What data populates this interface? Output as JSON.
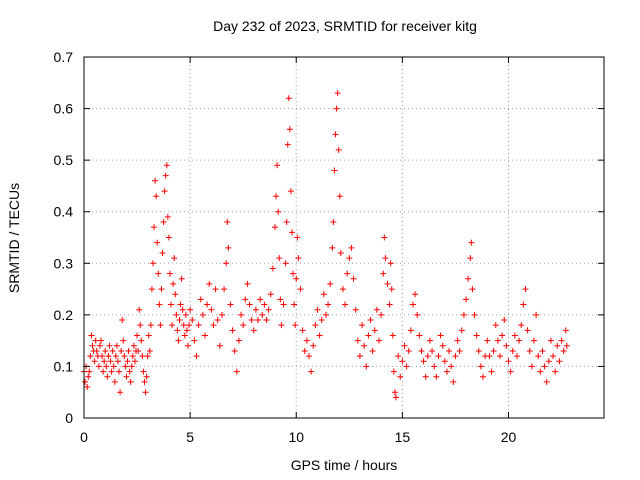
{
  "chart_data": {
    "type": "scatter",
    "title": "Day 232 of 2023, SRMTID for receiver kitg",
    "xlabel": "GPS time / hours",
    "ylabel": "SRMTID / TECUs",
    "xlim": [
      0,
      24.5
    ],
    "ylim": [
      0,
      0.7
    ],
    "xticks": [
      0,
      5,
      10,
      15,
      20
    ],
    "yticks": [
      0,
      0.1,
      0.2,
      0.3,
      0.4,
      0.5,
      0.6,
      0.7
    ],
    "ytick_labels": [
      "0",
      "0.1",
      "0.2",
      "0.3",
      "0.4",
      "0.5",
      "0.6",
      "0.7"
    ],
    "marker": "+",
    "color": "#ff0000",
    "grid": true,
    "series": [
      {
        "name": "kitg",
        "note": "dense point cloud; representative sample of the plotted points",
        "points": [
          [
            0.0,
            0.09
          ],
          [
            0.05,
            0.07
          ],
          [
            0.1,
            0.1
          ],
          [
            0.15,
            0.06
          ],
          [
            0.2,
            0.08
          ],
          [
            0.25,
            0.09
          ],
          [
            0.3,
            0.12
          ],
          [
            0.35,
            0.16
          ],
          [
            0.4,
            0.14
          ],
          [
            0.45,
            0.13
          ],
          [
            0.5,
            0.11
          ],
          [
            0.55,
            0.15
          ],
          [
            0.6,
            0.13
          ],
          [
            0.65,
            0.12
          ],
          [
            0.7,
            0.1
          ],
          [
            0.75,
            0.14
          ],
          [
            0.8,
            0.15
          ],
          [
            0.85,
            0.12
          ],
          [
            0.9,
            0.09
          ],
          [
            0.95,
            0.11
          ],
          [
            1.0,
            0.13
          ],
          [
            1.05,
            0.1
          ],
          [
            1.1,
            0.08
          ],
          [
            1.15,
            0.12
          ],
          [
            1.2,
            0.14
          ],
          [
            1.25,
            0.11
          ],
          [
            1.3,
            0.09
          ],
          [
            1.35,
            0.13
          ],
          [
            1.4,
            0.1
          ],
          [
            1.45,
            0.07
          ],
          [
            1.5,
            0.12
          ],
          [
            1.55,
            0.14
          ],
          [
            1.6,
            0.11
          ],
          [
            1.65,
            0.09
          ],
          [
            1.7,
            0.05
          ],
          [
            1.75,
            0.13
          ],
          [
            1.8,
            0.19
          ],
          [
            1.85,
            0.15
          ],
          [
            1.9,
            0.12
          ],
          [
            1.95,
            0.1
          ],
          [
            2.0,
            0.08
          ],
          [
            2.05,
            0.11
          ],
          [
            2.1,
            0.13
          ],
          [
            2.15,
            0.09
          ],
          [
            2.2,
            0.07
          ],
          [
            2.25,
            0.1
          ],
          [
            2.3,
            0.12
          ],
          [
            2.35,
            0.14
          ],
          [
            2.4,
            0.11
          ],
          [
            2.45,
            0.13
          ],
          [
            2.5,
            0.16
          ],
          [
            2.55,
            0.13
          ],
          [
            2.6,
            0.21
          ],
          [
            2.65,
            0.18
          ],
          [
            2.7,
            0.15
          ],
          [
            2.75,
            0.12
          ],
          [
            2.8,
            0.09
          ],
          [
            2.85,
            0.07
          ],
          [
            2.9,
            0.05
          ],
          [
            2.95,
            0.08
          ],
          [
            3.0,
            0.12
          ],
          [
            3.05,
            0.16
          ],
          [
            3.1,
            0.13
          ],
          [
            3.15,
            0.18
          ],
          [
            3.2,
            0.25
          ],
          [
            3.25,
            0.3
          ],
          [
            3.3,
            0.37
          ],
          [
            3.35,
            0.46
          ],
          [
            3.4,
            0.43
          ],
          [
            3.45,
            0.34
          ],
          [
            3.5,
            0.28
          ],
          [
            3.55,
            0.22
          ],
          [
            3.6,
            0.18
          ],
          [
            3.65,
            0.25
          ],
          [
            3.7,
            0.32
          ],
          [
            3.75,
            0.38
          ],
          [
            3.8,
            0.44
          ],
          [
            3.85,
            0.47
          ],
          [
            3.9,
            0.49
          ],
          [
            3.95,
            0.39
          ],
          [
            4.0,
            0.35
          ],
          [
            4.05,
            0.28
          ],
          [
            4.1,
            0.22
          ],
          [
            4.15,
            0.18
          ],
          [
            4.2,
            0.26
          ],
          [
            4.25,
            0.31
          ],
          [
            4.3,
            0.24
          ],
          [
            4.35,
            0.2
          ],
          [
            4.4,
            0.17
          ],
          [
            4.45,
            0.15
          ],
          [
            4.5,
            0.19
          ],
          [
            4.55,
            0.22
          ],
          [
            4.6,
            0.27
          ],
          [
            4.65,
            0.21
          ],
          [
            4.7,
            0.18
          ],
          [
            4.75,
            0.16
          ],
          [
            4.8,
            0.2
          ],
          [
            4.85,
            0.17
          ],
          [
            4.9,
            0.14
          ],
          [
            4.95,
            0.18
          ],
          [
            5.0,
            0.21
          ],
          [
            5.1,
            0.19
          ],
          [
            5.2,
            0.15
          ],
          [
            5.3,
            0.12
          ],
          [
            5.4,
            0.18
          ],
          [
            5.5,
            0.23
          ],
          [
            5.6,
            0.2
          ],
          [
            5.7,
            0.16
          ],
          [
            5.8,
            0.22
          ],
          [
            5.9,
            0.26
          ],
          [
            6.0,
            0.21
          ],
          [
            6.1,
            0.18
          ],
          [
            6.2,
            0.25
          ],
          [
            6.3,
            0.19
          ],
          [
            6.4,
            0.14
          ],
          [
            6.5,
            0.2
          ],
          [
            6.6,
            0.25
          ],
          [
            6.7,
            0.3
          ],
          [
            6.75,
            0.38
          ],
          [
            6.8,
            0.33
          ],
          [
            6.9,
            0.22
          ],
          [
            7.0,
            0.17
          ],
          [
            7.1,
            0.13
          ],
          [
            7.2,
            0.09
          ],
          [
            7.3,
            0.15
          ],
          [
            7.4,
            0.2
          ],
          [
            7.5,
            0.18
          ],
          [
            7.6,
            0.23
          ],
          [
            7.7,
            0.26
          ],
          [
            7.8,
            0.22
          ],
          [
            7.9,
            0.19
          ],
          [
            8.0,
            0.17
          ],
          [
            8.1,
            0.21
          ],
          [
            8.2,
            0.19
          ],
          [
            8.3,
            0.23
          ],
          [
            8.4,
            0.2
          ],
          [
            8.5,
            0.22
          ],
          [
            8.6,
            0.19
          ],
          [
            8.7,
            0.21
          ],
          [
            8.8,
            0.24
          ],
          [
            8.9,
            0.29
          ],
          [
            9.0,
            0.37
          ],
          [
            9.05,
            0.43
          ],
          [
            9.1,
            0.49
          ],
          [
            9.15,
            0.4
          ],
          [
            9.2,
            0.31
          ],
          [
            9.25,
            0.23
          ],
          [
            9.3,
            0.18
          ],
          [
            9.4,
            0.22
          ],
          [
            9.5,
            0.3
          ],
          [
            9.55,
            0.38
          ],
          [
            9.6,
            0.53
          ],
          [
            9.65,
            0.62
          ],
          [
            9.7,
            0.56
          ],
          [
            9.75,
            0.44
          ],
          [
            9.8,
            0.36
          ],
          [
            9.85,
            0.28
          ],
          [
            9.9,
            0.22
          ],
          [
            9.95,
            0.18
          ],
          [
            10.0,
            0.27
          ],
          [
            10.05,
            0.35
          ],
          [
            10.1,
            0.31
          ],
          [
            10.2,
            0.25
          ],
          [
            10.3,
            0.17
          ],
          [
            10.4,
            0.13
          ],
          [
            10.5,
            0.15
          ],
          [
            10.6,
            0.12
          ],
          [
            10.7,
            0.09
          ],
          [
            10.8,
            0.14
          ],
          [
            10.9,
            0.18
          ],
          [
            11.0,
            0.21
          ],
          [
            11.1,
            0.16
          ],
          [
            11.2,
            0.19
          ],
          [
            11.3,
            0.24
          ],
          [
            11.4,
            0.2
          ],
          [
            11.5,
            0.22
          ],
          [
            11.6,
            0.26
          ],
          [
            11.7,
            0.33
          ],
          [
            11.75,
            0.38
          ],
          [
            11.8,
            0.48
          ],
          [
            11.85,
            0.55
          ],
          [
            11.9,
            0.6
          ],
          [
            11.95,
            0.63
          ],
          [
            12.0,
            0.52
          ],
          [
            12.05,
            0.43
          ],
          [
            12.1,
            0.32
          ],
          [
            12.2,
            0.25
          ],
          [
            12.3,
            0.22
          ],
          [
            12.4,
            0.28
          ],
          [
            12.5,
            0.31
          ],
          [
            12.6,
            0.33
          ],
          [
            12.7,
            0.27
          ],
          [
            12.8,
            0.21
          ],
          [
            12.9,
            0.15
          ],
          [
            13.0,
            0.12
          ],
          [
            13.1,
            0.18
          ],
          [
            13.2,
            0.14
          ],
          [
            13.3,
            0.1
          ],
          [
            13.4,
            0.16
          ],
          [
            13.5,
            0.19
          ],
          [
            13.6,
            0.13
          ],
          [
            13.7,
            0.17
          ],
          [
            13.8,
            0.21
          ],
          [
            13.9,
            0.15
          ],
          [
            14.0,
            0.2
          ],
          [
            14.1,
            0.28
          ],
          [
            14.15,
            0.35
          ],
          [
            14.2,
            0.31
          ],
          [
            14.3,
            0.26
          ],
          [
            14.4,
            0.22
          ],
          [
            14.45,
            0.3
          ],
          [
            14.5,
            0.25
          ],
          [
            14.55,
            0.16
          ],
          [
            14.6,
            0.09
          ],
          [
            14.65,
            0.05
          ],
          [
            14.7,
            0.04
          ],
          [
            14.8,
            0.12
          ],
          [
            14.9,
            0.08
          ],
          [
            15.0,
            0.11
          ],
          [
            15.1,
            0.14
          ],
          [
            15.2,
            0.1
          ],
          [
            15.3,
            0.13
          ],
          [
            15.4,
            0.17
          ],
          [
            15.5,
            0.22
          ],
          [
            15.6,
            0.24
          ],
          [
            15.7,
            0.2
          ],
          [
            15.8,
            0.16
          ],
          [
            15.9,
            0.13
          ],
          [
            16.0,
            0.11
          ],
          [
            16.1,
            0.08
          ],
          [
            16.2,
            0.12
          ],
          [
            16.3,
            0.15
          ],
          [
            16.4,
            0.13
          ],
          [
            16.5,
            0.1
          ],
          [
            16.6,
            0.08
          ],
          [
            16.7,
            0.12
          ],
          [
            16.8,
            0.16
          ],
          [
            16.9,
            0.14
          ],
          [
            17.0,
            0.11
          ],
          [
            17.1,
            0.09
          ],
          [
            17.2,
            0.13
          ],
          [
            17.3,
            0.1
          ],
          [
            17.4,
            0.07
          ],
          [
            17.5,
            0.12
          ],
          [
            17.6,
            0.15
          ],
          [
            17.7,
            0.13
          ],
          [
            17.8,
            0.17
          ],
          [
            17.9,
            0.2
          ],
          [
            18.0,
            0.23
          ],
          [
            18.1,
            0.27
          ],
          [
            18.2,
            0.31
          ],
          [
            18.25,
            0.34
          ],
          [
            18.3,
            0.25
          ],
          [
            18.4,
            0.2
          ],
          [
            18.5,
            0.16
          ],
          [
            18.6,
            0.13
          ],
          [
            18.7,
            0.1
          ],
          [
            18.8,
            0.08
          ],
          [
            18.9,
            0.12
          ],
          [
            19.0,
            0.15
          ],
          [
            19.1,
            0.12
          ],
          [
            19.2,
            0.09
          ],
          [
            19.3,
            0.13
          ],
          [
            19.4,
            0.18
          ],
          [
            19.5,
            0.15
          ],
          [
            19.6,
            0.12
          ],
          [
            19.7,
            0.16
          ],
          [
            19.8,
            0.19
          ],
          [
            19.9,
            0.14
          ],
          [
            20.0,
            0.11
          ],
          [
            20.1,
            0.09
          ],
          [
            20.2,
            0.13
          ],
          [
            20.3,
            0.16
          ],
          [
            20.4,
            0.12
          ],
          [
            20.5,
            0.15
          ],
          [
            20.6,
            0.18
          ],
          [
            20.7,
            0.22
          ],
          [
            20.8,
            0.25
          ],
          [
            20.9,
            0.17
          ],
          [
            21.0,
            0.13
          ],
          [
            21.1,
            0.1
          ],
          [
            21.2,
            0.15
          ],
          [
            21.3,
            0.2
          ],
          [
            21.4,
            0.12
          ],
          [
            21.5,
            0.09
          ],
          [
            21.6,
            0.13
          ],
          [
            21.7,
            0.1
          ],
          [
            21.8,
            0.07
          ],
          [
            21.9,
            0.11
          ],
          [
            22.0,
            0.15
          ],
          [
            22.1,
            0.12
          ],
          [
            22.2,
            0.09
          ],
          [
            22.3,
            0.14
          ],
          [
            22.4,
            0.11
          ],
          [
            22.5,
            0.15
          ],
          [
            22.6,
            0.13
          ],
          [
            22.7,
            0.17
          ],
          [
            22.75,
            0.14
          ]
        ]
      }
    ]
  }
}
